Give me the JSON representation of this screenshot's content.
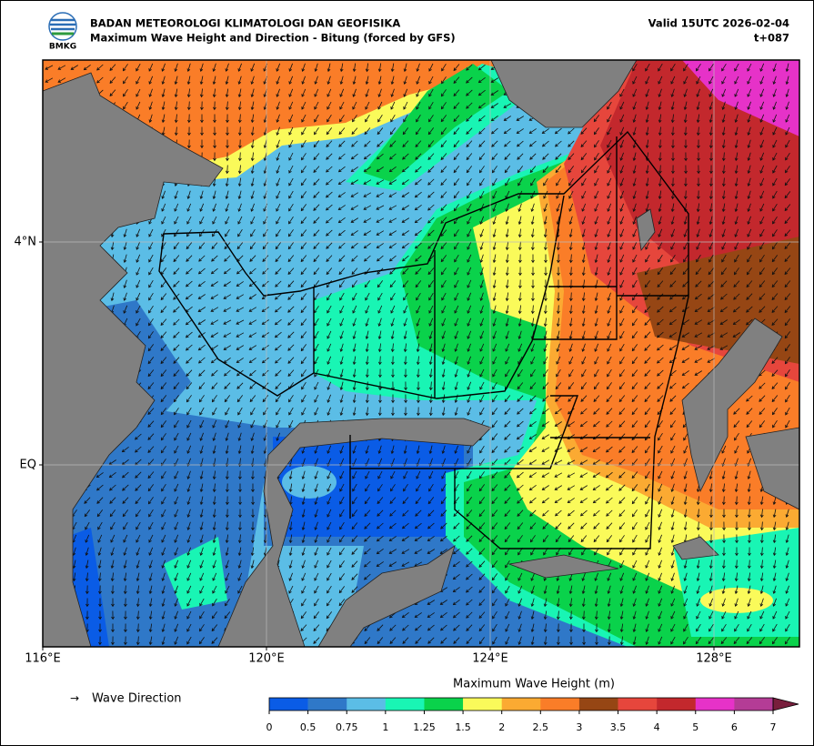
{
  "header": {
    "logo_text": "BMKG",
    "agency": "BADAN METEOROLOGI KLIMATOLOGI DAN GEOFISIKA",
    "title": "Maximum Wave Height and Direction - Bitung (forced by GFS)",
    "valid": "Valid 15UTC 2026-02-04",
    "lead": "t+087"
  },
  "map": {
    "lon_labels": [
      "116°E",
      "120°E",
      "124°E",
      "128°E"
    ],
    "lat_labels": [
      "4°N",
      "EQ"
    ]
  },
  "legend": {
    "symbol": "→",
    "label": "Wave Direction"
  },
  "colorbar": {
    "title": "Maximum Wave Height (m)",
    "levels": [
      0,
      0.5,
      0.75,
      1,
      1.25,
      1.5,
      2,
      2.5,
      3,
      3.5,
      4,
      5,
      6,
      7
    ],
    "colors": [
      "#0a5ce6",
      "#2f78c8",
      "#5bbde6",
      "#19f5b4",
      "#0ad24b",
      "#fafa5a",
      "#fbaa32",
      "#fa7d28",
      "#964614",
      "#e6463c",
      "#c3282d",
      "#e632c8",
      "#b43c96",
      "#781e3c"
    ]
  }
}
